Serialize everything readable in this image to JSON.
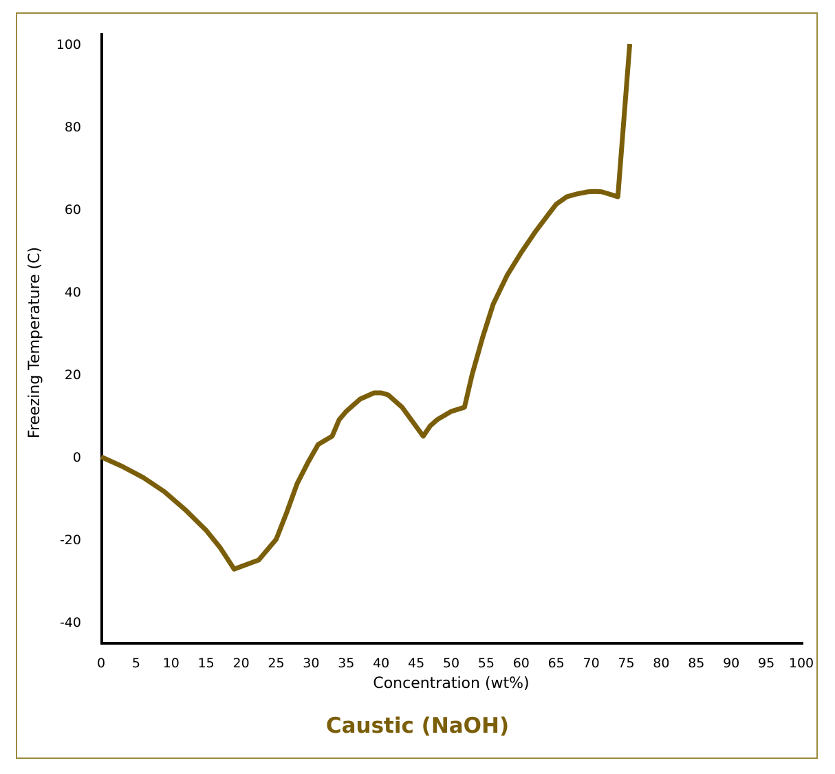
{
  "colors": {
    "line": "#7a5e0a",
    "frame": "#9b8a3c",
    "axis": "#000000",
    "title": "#7a5e0a"
  },
  "chart_data": {
    "type": "line",
    "title": "Caustic (NaOH)",
    "xlabel": "Concentration (wt%)",
    "ylabel": "Freezing Temperature (C)",
    "xlim": [
      0,
      100
    ],
    "ylim": [
      -45,
      102
    ],
    "grid": false,
    "xticks": [
      "0",
      "5",
      "10",
      "15",
      "20",
      "25",
      "30",
      "35",
      "40",
      "45",
      "50",
      "55",
      "60",
      "65",
      "70",
      "75",
      "80",
      "85",
      "90",
      "95",
      "100"
    ],
    "yticks": [
      "100",
      "80",
      "60",
      "40",
      "20",
      "0",
      "-20",
      "-40"
    ],
    "series": [
      {
        "x": [
          0,
          3,
          6,
          9,
          12,
          15,
          17,
          19,
          22.5,
          24,
          25,
          26.5,
          28,
          29.5,
          31,
          33,
          34,
          35,
          37,
          39,
          40,
          41,
          43,
          44.5,
          46,
          47,
          48,
          50,
          51.9,
          53,
          54.5,
          56,
          58,
          60,
          62,
          64,
          65,
          66.5,
          68,
          69.5,
          70.5,
          71.5,
          72.5,
          73.8,
          75.5
        ],
        "y": [
          0,
          -2.3,
          -5,
          -8.4,
          -12.8,
          -17.8,
          -22,
          -27.2,
          -25,
          -22,
          -20,
          -13.5,
          -6.5,
          -1.5,
          3,
          5,
          9,
          11,
          14,
          15.5,
          15.5,
          15,
          12,
          8.5,
          5,
          7.5,
          9,
          11,
          12,
          20,
          29,
          37,
          44,
          49.5,
          54.5,
          59,
          61.2,
          63,
          63.7,
          64.2,
          64.3,
          64.2,
          63.7,
          63,
          100
        ]
      }
    ]
  }
}
